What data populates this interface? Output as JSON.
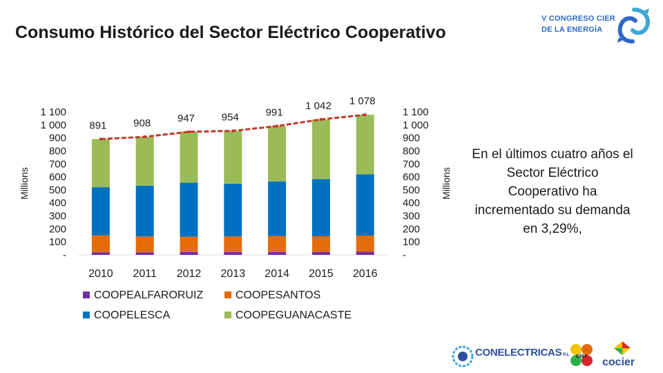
{
  "slide": {
    "title": "Consumo Histórico del Sector Eléctrico Cooperativo",
    "side_text": "En el últimos cuatro años el Sector Eléctrico Cooperativo ha incrementado su demanda en 3,29%,",
    "logo_top_line1": "V CONGRESO CIER",
    "logo_top_line2": "DE LA ENERGÍA",
    "logo_conelectricas": "CONELECTRICAS",
    "logo_conelectricas_suffix": "R.L.",
    "logo_cier_mark": "cier",
    "logo_cocier": "cocier"
  },
  "colors": {
    "alfaroruiz": "#7030a0",
    "coopesantos": "#e46c0a",
    "coopelesca": "#0070c0",
    "coopeguanacaste": "#9bbb59",
    "total_line": "#c0392b",
    "logo_blue": "#2f68c8"
  },
  "chart_data": {
    "type": "bar",
    "stacked": true,
    "categories": [
      "2010",
      "2011",
      "2012",
      "2013",
      "2014",
      "2015",
      "2016"
    ],
    "series": [
      {
        "name": "COOPEALFARORUIZ",
        "color_key": "alfaroruiz",
        "values": [
          20,
          20,
          22,
          22,
          22,
          23,
          24
        ]
      },
      {
        "name": "COOPESANTOS",
        "color_key": "coopesantos",
        "values": [
          130,
          122,
          118,
          120,
          123,
          120,
          125
        ]
      },
      {
        "name": "COOPELESCA",
        "color_key": "coopelesca",
        "values": [
          370,
          390,
          415,
          405,
          420,
          440,
          470
        ]
      },
      {
        "name": "COOPEGUANACASTE",
        "color_key": "coopeguanacaste",
        "values": [
          371,
          376,
          392,
          407,
          426,
          459,
          459
        ]
      }
    ],
    "totals": [
      891,
      908,
      947,
      954,
      991,
      1042,
      1078
    ],
    "total_labels": [
      "891",
      "908",
      "947",
      "954",
      "991",
      "1 042",
      "1 078"
    ],
    "y_ticks": [
      "-",
      "100",
      "200",
      "300",
      "400",
      "500",
      "600",
      "700",
      "800",
      "900",
      "1 000",
      "1 100"
    ],
    "ylim": [
      0,
      1100
    ],
    "ylabel": "Millions",
    "y2label": "Millions",
    "legend_position": "bottom",
    "legend": [
      "COOPEALFARORUIZ",
      "COOPESANTOS",
      "COOPELESCA",
      "COOPEGUANACASTE"
    ]
  }
}
